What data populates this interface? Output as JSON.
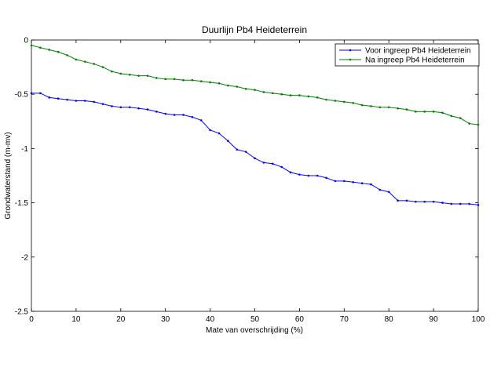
{
  "chart_data": {
    "type": "line",
    "title": "Duurlijn Pb4 Heideterrein",
    "xlabel": "Mate van overschrijding (%)",
    "ylabel": "Grondwaterstand (m-mv)",
    "xlim": [
      0,
      100
    ],
    "ylim": [
      -2.5,
      0
    ],
    "xticks": [
      0,
      10,
      20,
      30,
      40,
      50,
      60,
      70,
      80,
      90,
      100
    ],
    "yticks": [
      0,
      -0.5,
      -1,
      -1.5,
      -2,
      -2.5
    ],
    "xtick_labels": [
      "0",
      "10",
      "20",
      "30",
      "40",
      "50",
      "60",
      "70",
      "80",
      "90",
      "100"
    ],
    "ytick_labels": [
      "0",
      "-0.5",
      "-1",
      "-1.5",
      "-2",
      "-2.5"
    ],
    "grid": false,
    "legend_position": "top-right",
    "series": [
      {
        "name": "Voor ingreep Pb4 Heideterrein",
        "color": "#0000ff",
        "x": [
          0,
          2,
          4,
          6,
          8,
          10,
          12,
          14,
          16,
          18,
          20,
          22,
          24,
          26,
          28,
          30,
          32,
          34,
          36,
          38,
          40,
          42,
          44,
          46,
          48,
          50,
          52,
          54,
          56,
          58,
          60,
          62,
          64,
          66,
          68,
          70,
          72,
          74,
          76,
          78,
          80,
          82,
          84,
          86,
          88,
          90,
          92,
          94,
          96,
          98,
          100
        ],
        "y": [
          -0.49,
          -0.49,
          -0.53,
          -0.54,
          -0.55,
          -0.56,
          -0.56,
          -0.57,
          -0.59,
          -0.61,
          -0.62,
          -0.62,
          -0.63,
          -0.64,
          -0.66,
          -0.68,
          -0.69,
          -0.69,
          -0.71,
          -0.74,
          -0.83,
          -0.86,
          -0.93,
          -1.01,
          -1.03,
          -1.09,
          -1.13,
          -1.14,
          -1.17,
          -1.22,
          -1.24,
          -1.25,
          -1.25,
          -1.27,
          -1.3,
          -1.3,
          -1.31,
          -1.32,
          -1.33,
          -1.38,
          -1.4,
          -1.48,
          -1.48,
          -1.49,
          -1.49,
          -1.49,
          -1.5,
          -1.51,
          -1.51,
          -1.51,
          -1.52
        ]
      },
      {
        "name": "Na ingreep Pb4 Heideterrein",
        "color": "#008000",
        "x": [
          0,
          2,
          4,
          6,
          8,
          10,
          12,
          14,
          16,
          18,
          20,
          22,
          24,
          26,
          28,
          30,
          32,
          34,
          36,
          38,
          40,
          42,
          44,
          46,
          48,
          50,
          52,
          54,
          56,
          58,
          60,
          62,
          64,
          66,
          68,
          70,
          72,
          74,
          76,
          78,
          80,
          82,
          84,
          86,
          88,
          90,
          92,
          94,
          96,
          98,
          100
        ],
        "y": [
          -0.05,
          -0.07,
          -0.09,
          -0.11,
          -0.14,
          -0.18,
          -0.2,
          -0.22,
          -0.25,
          -0.29,
          -0.31,
          -0.32,
          -0.33,
          -0.33,
          -0.35,
          -0.36,
          -0.36,
          -0.37,
          -0.37,
          -0.38,
          -0.39,
          -0.4,
          -0.42,
          -0.43,
          -0.45,
          -0.46,
          -0.48,
          -0.49,
          -0.5,
          -0.51,
          -0.51,
          -0.52,
          -0.53,
          -0.55,
          -0.56,
          -0.57,
          -0.58,
          -0.6,
          -0.61,
          -0.62,
          -0.62,
          -0.63,
          -0.64,
          -0.66,
          -0.66,
          -0.66,
          -0.67,
          -0.7,
          -0.72,
          -0.77,
          -0.78
        ]
      }
    ]
  }
}
